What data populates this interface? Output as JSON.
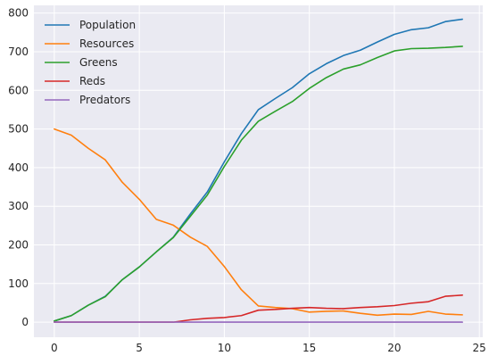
{
  "chart_data": {
    "type": "line",
    "title": "",
    "xlabel": "",
    "ylabel": "",
    "xlim": [
      -1.2,
      25.2
    ],
    "ylim": [
      -39,
      820
    ],
    "xticks": [
      0,
      5,
      10,
      15,
      20,
      25
    ],
    "yticks": [
      0,
      100,
      200,
      300,
      400,
      500,
      600,
      700,
      800
    ],
    "grid": true,
    "legend_position": "top-left",
    "background": "#eaeaf2",
    "x": [
      0,
      1,
      2,
      3,
      4,
      5,
      6,
      7,
      8,
      9,
      10,
      11,
      12,
      13,
      14,
      15,
      16,
      17,
      18,
      19,
      20,
      21,
      22,
      23,
      24
    ],
    "series": [
      {
        "name": "Population",
        "color": "#1f77b4",
        "values": [
          3,
          17,
          44,
          67,
          110,
          143,
          182,
          220,
          280,
          337,
          415,
          488,
          550,
          579,
          607,
          643,
          669,
          690,
          704,
          725,
          745,
          757,
          762,
          778,
          784
        ]
      },
      {
        "name": "Resources",
        "color": "#ff7f0e",
        "values": [
          500,
          484,
          450,
          420,
          362,
          318,
          266,
          251,
          220,
          196,
          144,
          84,
          42,
          38,
          35,
          26,
          28,
          29,
          23,
          18,
          21,
          20,
          28,
          21,
          19
        ]
      },
      {
        "name": "Greens",
        "color": "#2ca02c",
        "values": [
          3,
          17,
          44,
          66,
          110,
          143,
          182,
          219,
          274,
          329,
          403,
          471,
          520,
          546,
          571,
          605,
          633,
          655,
          666,
          685,
          702,
          708,
          709,
          711,
          714
        ]
      },
      {
        "name": "Reds",
        "color": "#d62728",
        "values": [
          0,
          0,
          0,
          0,
          0,
          0,
          0,
          0,
          6,
          10,
          12,
          17,
          31,
          33,
          36,
          38,
          36,
          35,
          38,
          40,
          43,
          49,
          53,
          67,
          70
        ]
      },
      {
        "name": "Predators",
        "color": "#9467bd",
        "values": [
          0,
          0,
          0,
          0,
          0,
          0,
          0,
          0,
          0,
          0,
          0,
          0,
          0,
          0,
          0,
          0,
          0,
          0,
          0,
          0,
          0,
          0,
          0,
          0,
          0
        ]
      }
    ]
  }
}
